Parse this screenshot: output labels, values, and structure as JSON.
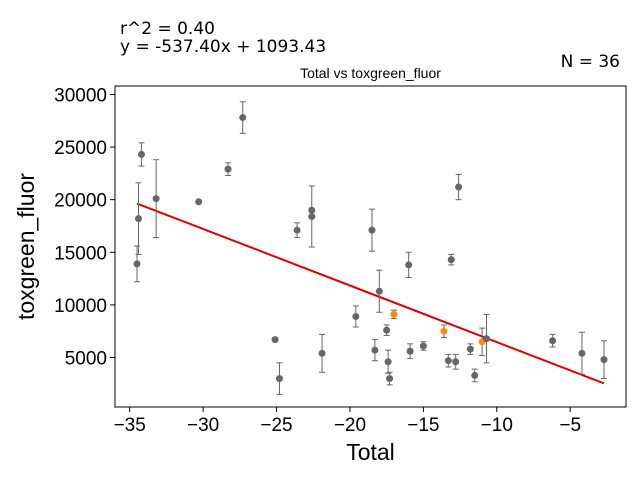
{
  "annotations": {
    "r_squared": "r^2 = 0.40",
    "equation": "y = -537.40x + 1093.43",
    "n_count": "N = 36"
  },
  "chart_data": {
    "type": "scatter",
    "title": "Total vs toxgreen_fluor",
    "xlabel": "Total",
    "ylabel": "toxgreen_fluor",
    "xlim": [
      -36.0,
      -1.2
    ],
    "ylim": [
      300,
      30800
    ],
    "xticks": [
      -35,
      -30,
      -25,
      -20,
      -15,
      -10,
      -5
    ],
    "xtick_labels": [
      "−35",
      "−30",
      "−25",
      "−20",
      "−15",
      "−10",
      "−5"
    ],
    "yticks": [
      5000,
      10000,
      15000,
      20000,
      25000,
      30000
    ],
    "ytick_labels": [
      "5000",
      "10000",
      "15000",
      "20000",
      "25000",
      "30000"
    ],
    "grid": false,
    "colors": {
      "points": "#666666",
      "highlight": "#ff8c00",
      "fit_line": "#dd0000",
      "errorbar": "#666666"
    },
    "points": [
      {
        "x": -34.5,
        "y": 13900,
        "err": 1700
      },
      {
        "x": -34.4,
        "y": 18200,
        "err": 3400
      },
      {
        "x": -34.2,
        "y": 24300,
        "err": 1100
      },
      {
        "x": -33.2,
        "y": 20100,
        "err": 3700
      },
      {
        "x": -30.3,
        "y": 19800,
        "err": 0
      },
      {
        "x": -28.3,
        "y": 22900,
        "err": 600
      },
      {
        "x": -27.3,
        "y": 27800,
        "err": 1500
      },
      {
        "x": -25.1,
        "y": 6700,
        "err": 0
      },
      {
        "x": -24.8,
        "y": 3000,
        "err": 1500
      },
      {
        "x": -23.6,
        "y": 17100,
        "err": 700
      },
      {
        "x": -22.6,
        "y": 18400,
        "err": 2900
      },
      {
        "x": -22.6,
        "y": 19000,
        "err": 0
      },
      {
        "x": -21.9,
        "y": 5400,
        "err": 1800
      },
      {
        "x": -19.6,
        "y": 8900,
        "err": 1000
      },
      {
        "x": -18.5,
        "y": 17100,
        "err": 2000
      },
      {
        "x": -18.3,
        "y": 5700,
        "err": 1000
      },
      {
        "x": -18.0,
        "y": 11300,
        "err": 2000
      },
      {
        "x": -17.5,
        "y": 7600,
        "err": 500
      },
      {
        "x": -17.4,
        "y": 4600,
        "err": 1100
      },
      {
        "x": -17.3,
        "y": 3000,
        "err": 600
      },
      {
        "x": -17.0,
        "y": 9100,
        "err": 400,
        "highlight": true
      },
      {
        "x": -16.0,
        "y": 13800,
        "err": 1200
      },
      {
        "x": -15.9,
        "y": 5600,
        "err": 700
      },
      {
        "x": -15.0,
        "y": 6100,
        "err": 400
      },
      {
        "x": -13.6,
        "y": 7500,
        "err": 600,
        "highlight": true
      },
      {
        "x": -13.3,
        "y": 4700,
        "err": 600
      },
      {
        "x": -13.1,
        "y": 14300,
        "err": 500
      },
      {
        "x": -12.8,
        "y": 4600,
        "err": 700
      },
      {
        "x": -12.6,
        "y": 21200,
        "err": 1200
      },
      {
        "x": -11.8,
        "y": 5800,
        "err": 500
      },
      {
        "x": -11.5,
        "y": 3300,
        "err": 600
      },
      {
        "x": -11.0,
        "y": 6500,
        "err": 1300,
        "highlight": true
      },
      {
        "x": -10.7,
        "y": 6800,
        "err": 2300
      },
      {
        "x": -6.2,
        "y": 6600,
        "err": 600
      },
      {
        "x": -4.2,
        "y": 5400,
        "err": 2000
      },
      {
        "x": -2.7,
        "y": 4800,
        "err": 1800
      }
    ],
    "fit_line": {
      "slope": -537.4,
      "intercept": 1093.43,
      "x_range": [
        -34.5,
        -2.7
      ]
    }
  }
}
